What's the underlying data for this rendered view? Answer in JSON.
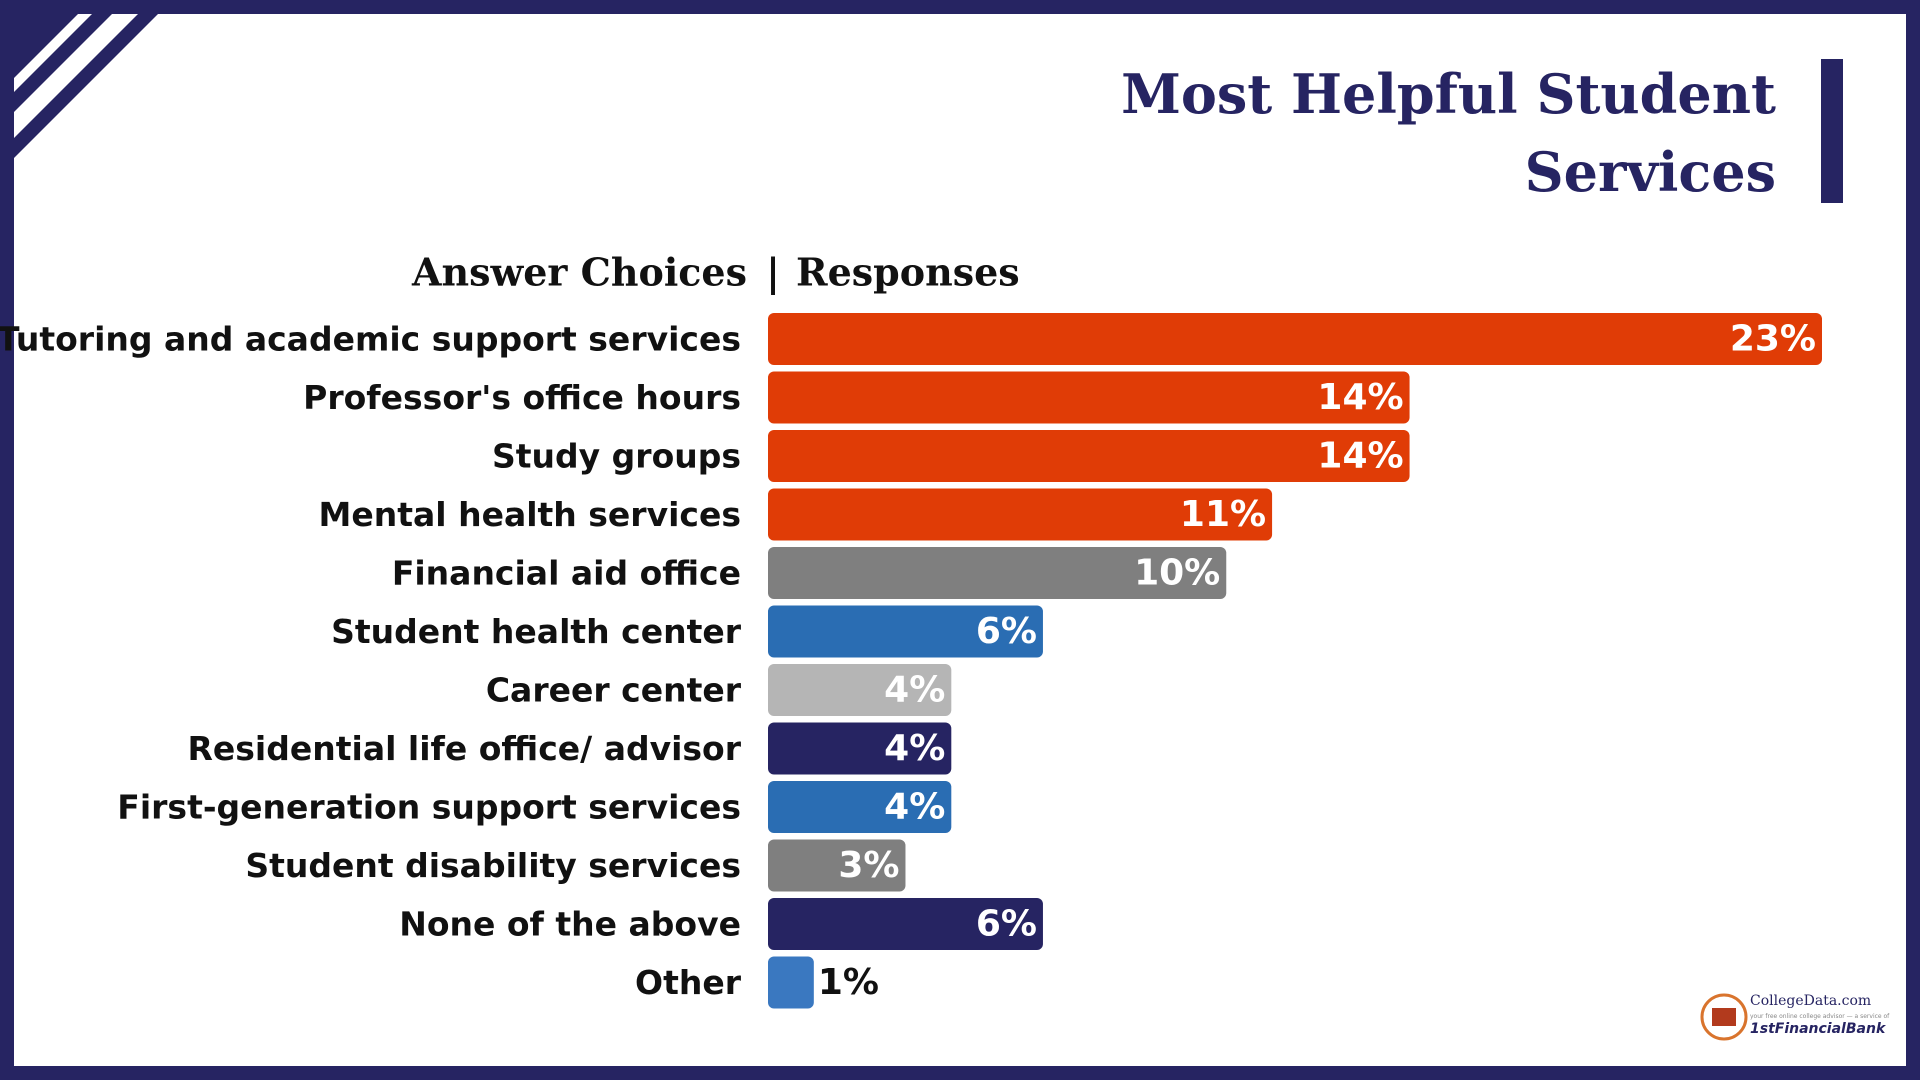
{
  "chart_data": {
    "type": "bar",
    "orientation": "horizontal",
    "title": "Most Helpful Student Services",
    "category_header": "Answer Choices",
    "header_separator": "|",
    "value_header": "Responses",
    "categories": [
      "Tutoring and academic support services",
      "Professor's office hours",
      "Study groups",
      "Mental health services",
      "Financial aid office",
      "Student health center",
      "Career center",
      "Residential life office/ advisor",
      "First-generation support services",
      "Student disability services",
      "None of the above",
      "Other"
    ],
    "values": [
      23,
      14,
      14,
      11,
      10,
      6,
      4,
      4,
      4,
      3,
      6,
      1
    ],
    "value_labels": [
      "23%",
      "14%",
      "14%",
      "11%",
      "10%",
      "6%",
      "4%",
      "4%",
      "4%",
      "3%",
      "6%",
      "1%"
    ],
    "colors": [
      "#e03c06",
      "#e03c06",
      "#e03c06",
      "#e03c06",
      "#7f7f7f",
      "#2a6db3",
      "#b5b5b5",
      "#262462",
      "#2a6db3",
      "#7f7f7f",
      "#262462",
      "#3a78c0"
    ]
  },
  "logo": {
    "name": "CollegeData.com",
    "tagline": "your free online college advisor — a service of",
    "partner": "1stFinancialBank"
  }
}
